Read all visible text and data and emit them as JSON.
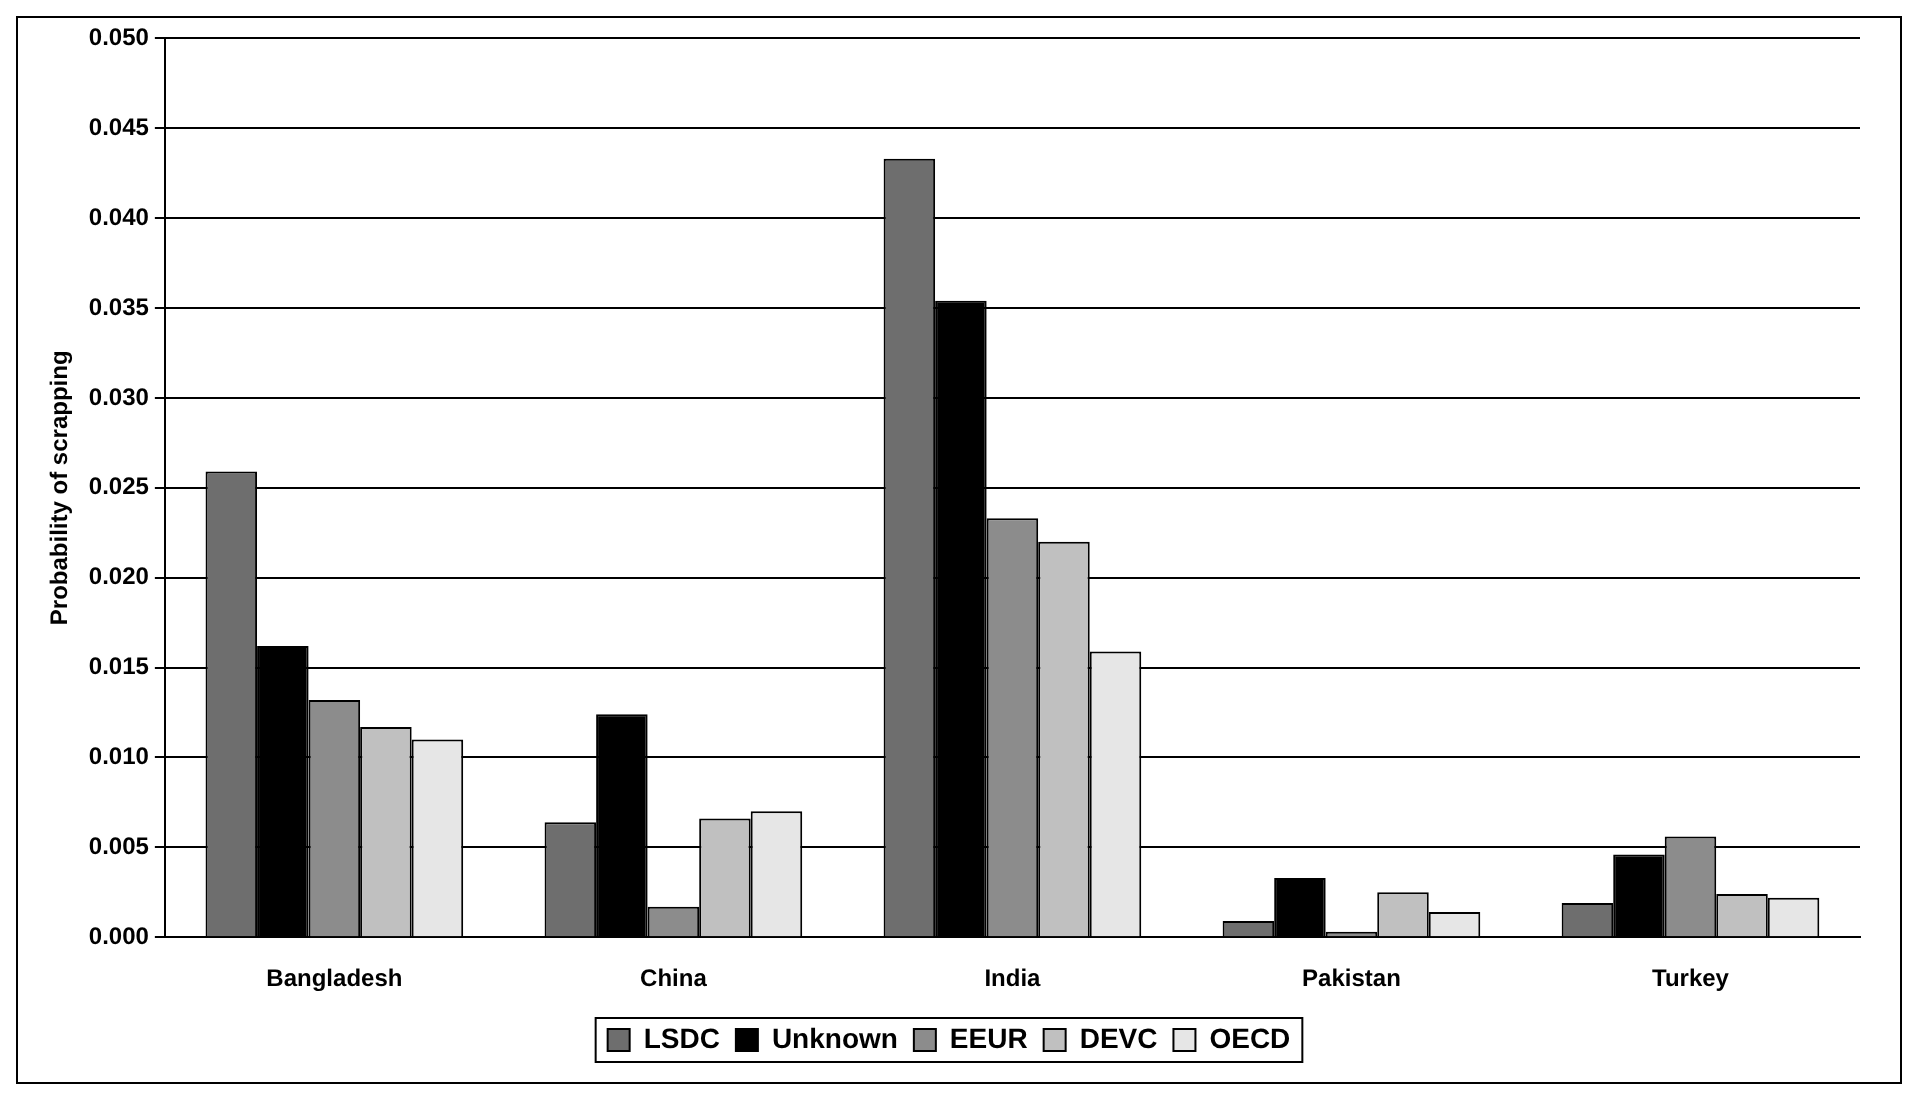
{
  "chart_data": {
    "type": "bar",
    "ylabel": "Probability of scrapping",
    "categories": [
      "Bangladesh",
      "China",
      "India",
      "Pakistan",
      "Turkey"
    ],
    "series": [
      {
        "name": "LSDC",
        "color": "#6e6e6e",
        "values": [
          0.0259,
          0.0064,
          0.0433,
          0.0009,
          0.0019
        ]
      },
      {
        "name": "Unknown",
        "color": "#000000",
        "values": [
          0.0162,
          0.0124,
          0.0354,
          0.0033,
          0.0046
        ]
      },
      {
        "name": "EEUR",
        "color": "#8c8c8c",
        "values": [
          0.0132,
          0.0017,
          0.0233,
          0.0003,
          0.0056
        ]
      },
      {
        "name": "DEVC",
        "color": "#c0c0c0",
        "values": [
          0.0117,
          0.0066,
          0.022,
          0.0025,
          0.0024
        ]
      },
      {
        "name": "OECD",
        "color": "#e6e6e6",
        "values": [
          0.011,
          0.007,
          0.0159,
          0.0014,
          0.0022
        ]
      }
    ],
    "ylim": [
      0,
      0.05
    ],
    "yticks": [
      {
        "value": 0,
        "label": "0.000"
      },
      {
        "value": 0.005,
        "label": "0.005"
      },
      {
        "value": 0.01,
        "label": "0.010"
      },
      {
        "value": 0.015,
        "label": "0.015"
      },
      {
        "value": 0.02,
        "label": "0.020"
      },
      {
        "value": 0.025,
        "label": "0.025"
      },
      {
        "value": 0.03,
        "label": "0.030"
      },
      {
        "value": 0.035,
        "label": "0.035"
      },
      {
        "value": 0.04,
        "label": "0.040"
      },
      {
        "value": 0.045,
        "label": "0.045"
      },
      {
        "value": 0.05,
        "label": "0.050"
      }
    ],
    "grid": "y",
    "legend": "bottom"
  }
}
